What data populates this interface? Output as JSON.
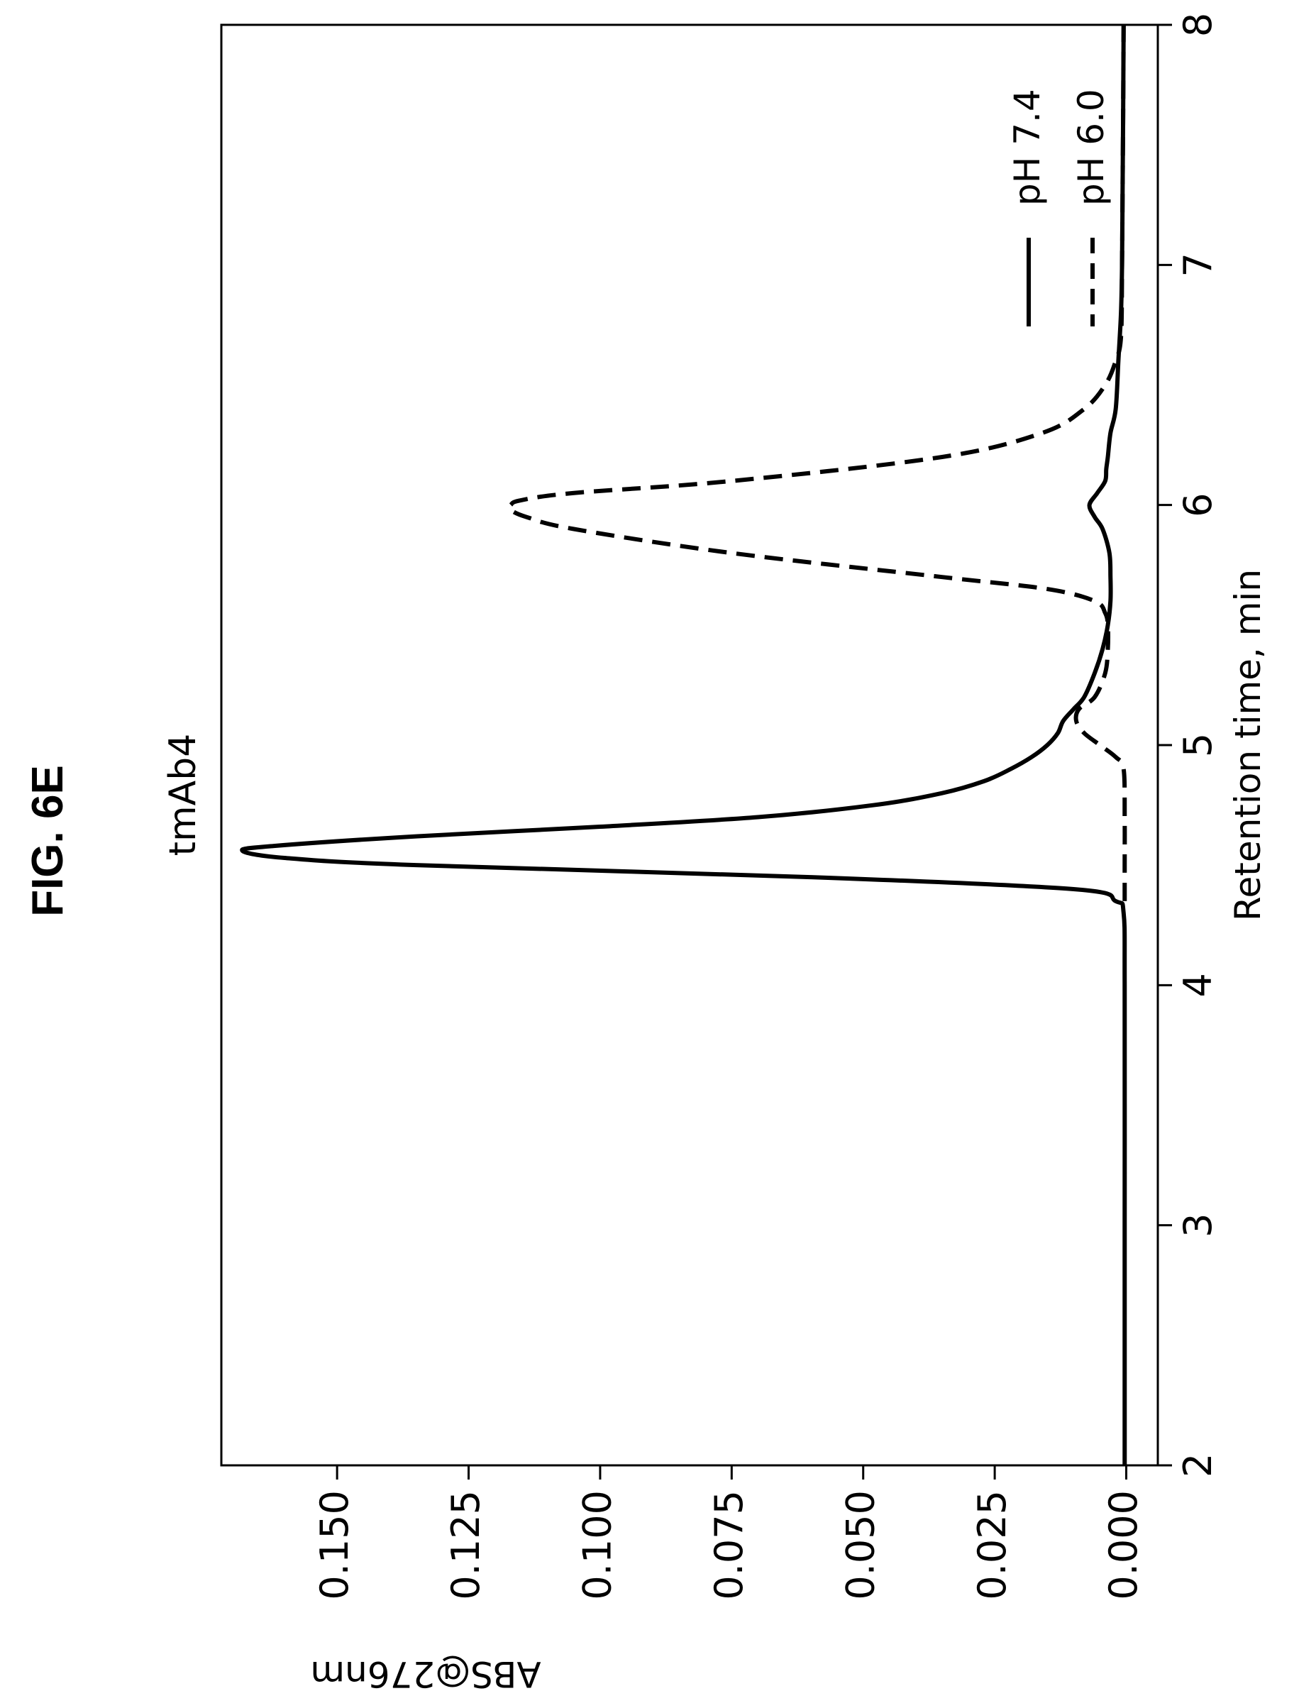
{
  "figure_label": "FIG. 6E",
  "chart_data": {
    "type": "line",
    "title": "tmAb4",
    "xlabel": "Retention time, min",
    "ylabel": "ABS@276nm",
    "xlim": [
      2,
      8
    ],
    "ylim": [
      -0.006,
      0.172
    ],
    "x_ticks": [
      2,
      3,
      4,
      5,
      6,
      7,
      8
    ],
    "y_ticks": [
      0.0,
      0.025,
      0.05,
      0.075,
      0.1,
      0.125,
      0.15
    ],
    "x_tick_labels": [
      "2",
      "3",
      "4",
      "5",
      "6",
      "7",
      "8"
    ],
    "y_tick_labels": [
      "0.000",
      "0.025",
      "0.050",
      "0.075",
      "0.100",
      "0.125",
      "0.150"
    ],
    "grid": false,
    "legend_placement": "top-right",
    "series": [
      {
        "name": "pH 7.4",
        "style": "solid",
        "x": [
          2.0,
          3.0,
          4.0,
          4.3,
          4.35,
          4.4,
          4.45,
          4.5,
          4.53,
          4.56,
          4.58,
          4.62,
          4.66,
          4.7,
          4.75,
          4.8,
          4.85,
          4.9,
          4.95,
          5.0,
          5.05,
          5.1,
          5.15,
          5.2,
          5.3,
          5.4,
          5.5,
          5.6,
          5.7,
          5.8,
          5.9,
          5.95,
          6.0,
          6.05,
          6.1,
          6.15,
          6.2,
          6.3,
          6.4,
          6.6,
          6.8,
          7.0,
          7.3,
          7.6,
          8.0
        ],
        "y": [
          0.0003,
          0.0003,
          0.0003,
          0.0005,
          0.002,
          0.01,
          0.06,
          0.135,
          0.16,
          0.168,
          0.162,
          0.135,
          0.1,
          0.07,
          0.048,
          0.035,
          0.027,
          0.022,
          0.018,
          0.015,
          0.013,
          0.012,
          0.01,
          0.008,
          0.006,
          0.0045,
          0.0035,
          0.003,
          0.003,
          0.0032,
          0.0045,
          0.006,
          0.007,
          0.0055,
          0.004,
          0.0038,
          0.0035,
          0.003,
          0.002,
          0.0015,
          0.001,
          0.0008,
          0.0007,
          0.0006,
          0.0005
        ]
      },
      {
        "name": "pH 6.0",
        "style": "dashed",
        "x": [
          4.35,
          4.5,
          4.7,
          4.9,
          4.95,
          5.0,
          5.05,
          5.1,
          5.15,
          5.2,
          5.3,
          5.4,
          5.5,
          5.55,
          5.6,
          5.65,
          5.7,
          5.8,
          5.9,
          5.95,
          5.98,
          6.0,
          6.02,
          6.05,
          6.1,
          6.2,
          6.3,
          6.4,
          6.5,
          6.6,
          6.7,
          7.0,
          7.3,
          7.6,
          8.0
        ],
        "y": [
          0.0003,
          0.0003,
          0.0003,
          0.0005,
          0.002,
          0.005,
          0.008,
          0.0095,
          0.009,
          0.006,
          0.004,
          0.0035,
          0.0035,
          0.004,
          0.006,
          0.015,
          0.035,
          0.075,
          0.105,
          0.114,
          0.117,
          0.117,
          0.115,
          0.105,
          0.075,
          0.035,
          0.016,
          0.008,
          0.004,
          0.002,
          0.001,
          0.0008,
          0.0007,
          0.0006,
          0.0005
        ]
      }
    ]
  }
}
